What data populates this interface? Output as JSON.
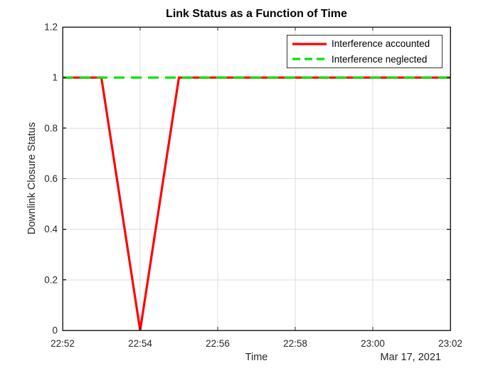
{
  "figure": {
    "background": "#ffffff"
  },
  "chart_data": {
    "type": "line",
    "title": "Link Status as a Function of Time",
    "xlabel": "Time",
    "ylabel": "Downlink Closure Status",
    "x_axis_date_label": "Mar 17, 2021",
    "xlim_minutes": [
      0,
      10
    ],
    "ylim": [
      0,
      1.2
    ],
    "x_tick_positions_minutes": [
      0,
      2,
      4,
      6,
      8,
      10
    ],
    "x_tick_labels": [
      "22:52",
      "22:54",
      "22:56",
      "22:58",
      "23:00",
      "23:02"
    ],
    "y_ticks": [
      0,
      0.2,
      0.4,
      0.6,
      0.8,
      1,
      1.2
    ],
    "y_tick_labels": [
      "0",
      "0.2",
      "0.4",
      "0.6",
      "0.8",
      "1",
      "1.2"
    ],
    "grid": true,
    "legend": {
      "position": "northeast",
      "items": [
        "Interference accounted",
        "Interference neglected"
      ]
    },
    "series": [
      {
        "name": "Interference accounted",
        "color": "#ff0000",
        "line_style": "solid",
        "x_minutes": [
          0,
          1,
          2,
          3,
          4,
          5,
          6,
          7,
          8,
          9,
          10
        ],
        "values": [
          1,
          1,
          0,
          1,
          1,
          1,
          1,
          1,
          1,
          1,
          1
        ]
      },
      {
        "name": "Interference neglected",
        "color": "#00e400",
        "line_style": "dashed",
        "x_minutes": [
          0,
          1,
          2,
          3,
          4,
          5,
          6,
          7,
          8,
          9,
          10
        ],
        "values": [
          1,
          1,
          1,
          1,
          1,
          1,
          1,
          1,
          1,
          1,
          1
        ]
      }
    ],
    "colors": {
      "axis": "#262626",
      "grid": "#dcdcdc",
      "tick_label": "#262626",
      "title": "#000000"
    }
  }
}
